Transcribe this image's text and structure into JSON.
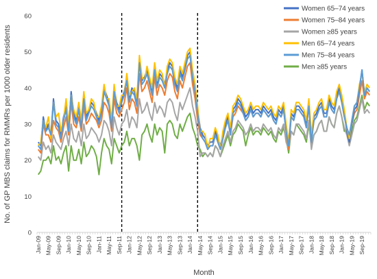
{
  "chart_data": {
    "type": "line",
    "xlabel": "Month",
    "ylabel": "No. of GP MBS claims for RMMRs per 1000 older residents",
    "ylim": [
      0,
      60
    ],
    "y_ticks": [
      0,
      10,
      20,
      30,
      40,
      50,
      60
    ],
    "x_tick_labels": [
      "Jan-09",
      "May-09",
      "Sep-09",
      "Jan-10",
      "May-10",
      "Sep-10",
      "Jan-11",
      "May-11",
      "Sep-11",
      "Jan-12",
      "May-12",
      "Sep-12",
      "Jan-13",
      "May-13",
      "Sep-13",
      "Jan-14",
      "May-14",
      "Sep-14",
      "Jan-15",
      "May-15",
      "Sep-15",
      "Jan-16",
      "May-16",
      "Sep-16",
      "Jan-17",
      "May-17",
      "Sep-17",
      "Jan-18",
      "May-18",
      "Sep-18",
      "Jan-19",
      "May-19",
      "Sep-19"
    ],
    "x_start": "Jan-09",
    "n_months": 132,
    "reference_lines": [
      "Oct-11",
      "Apr-14"
    ],
    "grid": "none",
    "legend_position": "top-right",
    "series": [
      {
        "name": "Women 65–74 years",
        "color": "#4472C4",
        "values": [
          25,
          24,
          32,
          28,
          30,
          27,
          37,
          31,
          30,
          27,
          32,
          35,
          29,
          39,
          33,
          31,
          35,
          30,
          38,
          32,
          34,
          36,
          35,
          33,
          31,
          34,
          40,
          38,
          36,
          30,
          40,
          36,
          34,
          37,
          39,
          43,
          37,
          40,
          39,
          36,
          48,
          42,
          43,
          45,
          42,
          39,
          46,
          41,
          44,
          43,
          41,
          45,
          47,
          46,
          42,
          40,
          45,
          43,
          46,
          49,
          50,
          44,
          40,
          34,
          29,
          27,
          26,
          24,
          25,
          25,
          28,
          26,
          24,
          27,
          30,
          32,
          28,
          34,
          35,
          37,
          36,
          34,
          32,
          33,
          35,
          33,
          34,
          34,
          33,
          35,
          34,
          33,
          34,
          32,
          31,
          34,
          33,
          35,
          29,
          24,
          33,
          32,
          35,
          35,
          34,
          33,
          30,
          36,
          26,
          32,
          33,
          35,
          36,
          33,
          33,
          37,
          35,
          34,
          38,
          40,
          37,
          33,
          28,
          25,
          30,
          34,
          35,
          40,
          45,
          38,
          40,
          39
        ]
      },
      {
        "name": "Women 75–84 years",
        "color": "#ED7D31",
        "values": [
          23,
          22,
          30,
          27,
          27,
          25,
          31,
          29,
          28,
          25,
          29,
          32,
          27,
          36,
          30,
          29,
          32,
          28,
          35,
          30,
          31,
          33,
          32,
          31,
          29,
          31,
          36,
          35,
          33,
          28,
          37,
          33,
          32,
          34,
          36,
          40,
          34,
          37,
          36,
          33,
          44,
          39,
          40,
          42,
          39,
          36,
          43,
          38,
          41,
          40,
          38,
          42,
          44,
          43,
          39,
          37,
          42,
          40,
          43,
          46,
          47,
          41,
          37,
          31,
          27,
          26,
          25,
          23,
          24,
          24,
          27,
          25,
          23,
          26,
          29,
          31,
          27,
          32,
          33,
          35,
          34,
          33,
          31,
          32,
          34,
          32,
          33,
          33,
          32,
          34,
          33,
          32,
          33,
          31,
          30,
          33,
          32,
          34,
          28,
          23,
          32,
          31,
          34,
          34,
          33,
          32,
          29,
          35,
          26,
          31,
          32,
          34,
          35,
          32,
          32,
          36,
          34,
          33,
          37,
          39,
          36,
          32,
          29,
          26,
          30,
          33,
          34,
          38,
          42,
          37,
          39,
          38
        ]
      },
      {
        "name": "Women ≥85 years",
        "color": "#A5A5A5",
        "values": [
          21,
          20,
          25,
          23,
          24,
          22,
          27,
          25,
          24,
          23,
          26,
          28,
          24,
          30,
          26,
          25,
          28,
          24,
          30,
          26,
          27,
          29,
          28,
          27,
          25,
          27,
          31,
          30,
          28,
          24,
          32,
          29,
          27,
          30,
          31,
          34,
          29,
          32,
          31,
          29,
          37,
          33,
          34,
          36,
          33,
          31,
          36,
          33,
          35,
          34,
          32,
          36,
          37,
          36,
          33,
          31,
          36,
          34,
          36,
          38,
          40,
          35,
          32,
          28,
          21,
          22,
          22,
          21,
          22,
          21,
          24,
          23,
          21,
          24,
          26,
          28,
          25,
          28,
          29,
          31,
          30,
          29,
          27,
          28,
          30,
          28,
          29,
          29,
          28,
          30,
          29,
          28,
          29,
          27,
          26,
          29,
          28,
          30,
          25,
          23,
          28,
          27,
          30,
          30,
          29,
          28,
          26,
          31,
          23,
          27,
          28,
          30,
          31,
          28,
          28,
          32,
          30,
          29,
          33,
          35,
          32,
          29,
          27,
          24,
          27,
          30,
          31,
          34,
          37,
          33,
          34,
          33
        ]
      },
      {
        "name": "Men 65–74 years",
        "color": "#FFC000",
        "values": [
          24,
          25,
          31,
          29,
          32,
          26,
          36,
          32,
          33,
          28,
          31,
          37,
          30,
          38,
          34,
          32,
          36,
          31,
          39,
          33,
          34,
          37,
          36,
          32,
          32,
          35,
          41,
          37,
          37,
          31,
          41,
          35,
          35,
          38,
          38,
          44,
          38,
          39,
          40,
          37,
          49,
          43,
          42,
          46,
          43,
          40,
          47,
          42,
          45,
          44,
          40,
          46,
          48,
          47,
          43,
          41,
          46,
          44,
          47,
          50,
          51,
          45,
          41,
          35,
          28,
          28,
          27,
          23,
          26,
          26,
          29,
          27,
          23,
          28,
          31,
          33,
          29,
          35,
          36,
          38,
          37,
          35,
          33,
          34,
          36,
          34,
          35,
          35,
          34,
          36,
          35,
          34,
          35,
          33,
          32,
          35,
          34,
          36,
          30,
          25,
          34,
          33,
          36,
          36,
          35,
          34,
          31,
          37,
          27,
          33,
          34,
          36,
          37,
          34,
          34,
          38,
          36,
          35,
          39,
          41,
          38,
          34,
          29,
          26,
          31,
          35,
          36,
          41,
          44,
          39,
          41,
          40
        ]
      },
      {
        "name": "Men 75–84 years",
        "color": "#5B9BD5",
        "values": [
          24,
          23,
          31,
          28,
          29,
          27,
          36,
          30,
          29,
          26,
          31,
          34,
          28,
          38,
          32,
          30,
          34,
          29,
          37,
          31,
          33,
          35,
          34,
          32,
          30,
          33,
          39,
          37,
          35,
          29,
          39,
          35,
          33,
          36,
          38,
          42,
          36,
          39,
          38,
          35,
          47,
          41,
          42,
          44,
          41,
          38,
          45,
          40,
          43,
          42,
          40,
          44,
          46,
          45,
          41,
          39,
          44,
          42,
          45,
          48,
          49,
          43,
          39,
          33,
          28,
          26,
          25,
          23,
          24,
          24,
          27,
          25,
          23,
          26,
          29,
          31,
          27,
          33,
          34,
          36,
          35,
          33,
          31,
          32,
          34,
          32,
          33,
          33,
          32,
          34,
          33,
          32,
          33,
          31,
          30,
          33,
          32,
          34,
          28,
          24,
          32,
          31,
          34,
          34,
          33,
          32,
          29,
          35,
          25,
          31,
          32,
          34,
          35,
          32,
          32,
          36,
          34,
          33,
          37,
          39,
          36,
          32,
          29,
          27,
          31,
          35,
          36,
          40,
          45,
          38,
          40,
          39
        ]
      },
      {
        "name": "Men ≥85 years",
        "color": "#70AD47",
        "values": [
          16,
          17,
          20,
          20,
          21,
          19,
          24,
          20,
          21,
          19,
          22,
          24,
          17,
          24,
          20,
          20,
          23,
          19,
          25,
          21,
          22,
          24,
          23,
          21,
          16,
          22,
          26,
          24,
          23,
          19,
          26,
          24,
          22,
          24,
          25,
          28,
          24,
          26,
          26,
          24,
          20,
          27,
          28,
          30,
          27,
          25,
          30,
          27,
          29,
          28,
          22,
          30,
          31,
          30,
          27,
          26,
          30,
          28,
          30,
          32,
          33,
          29,
          27,
          24,
          23,
          21,
          22,
          21,
          22,
          21,
          24,
          23,
          21,
          23,
          25,
          27,
          24,
          27,
          28,
          30,
          29,
          28,
          24,
          27,
          29,
          27,
          28,
          28,
          27,
          29,
          28,
          27,
          28,
          26,
          25,
          28,
          27,
          29,
          26,
          22,
          28,
          27,
          30,
          29,
          28,
          27,
          25,
          30,
          24,
          27,
          28,
          30,
          31,
          28,
          28,
          32,
          30,
          29,
          33,
          35,
          32,
          28,
          28,
          25,
          28,
          31,
          32,
          35,
          38,
          34,
          36,
          35
        ]
      }
    ]
  }
}
